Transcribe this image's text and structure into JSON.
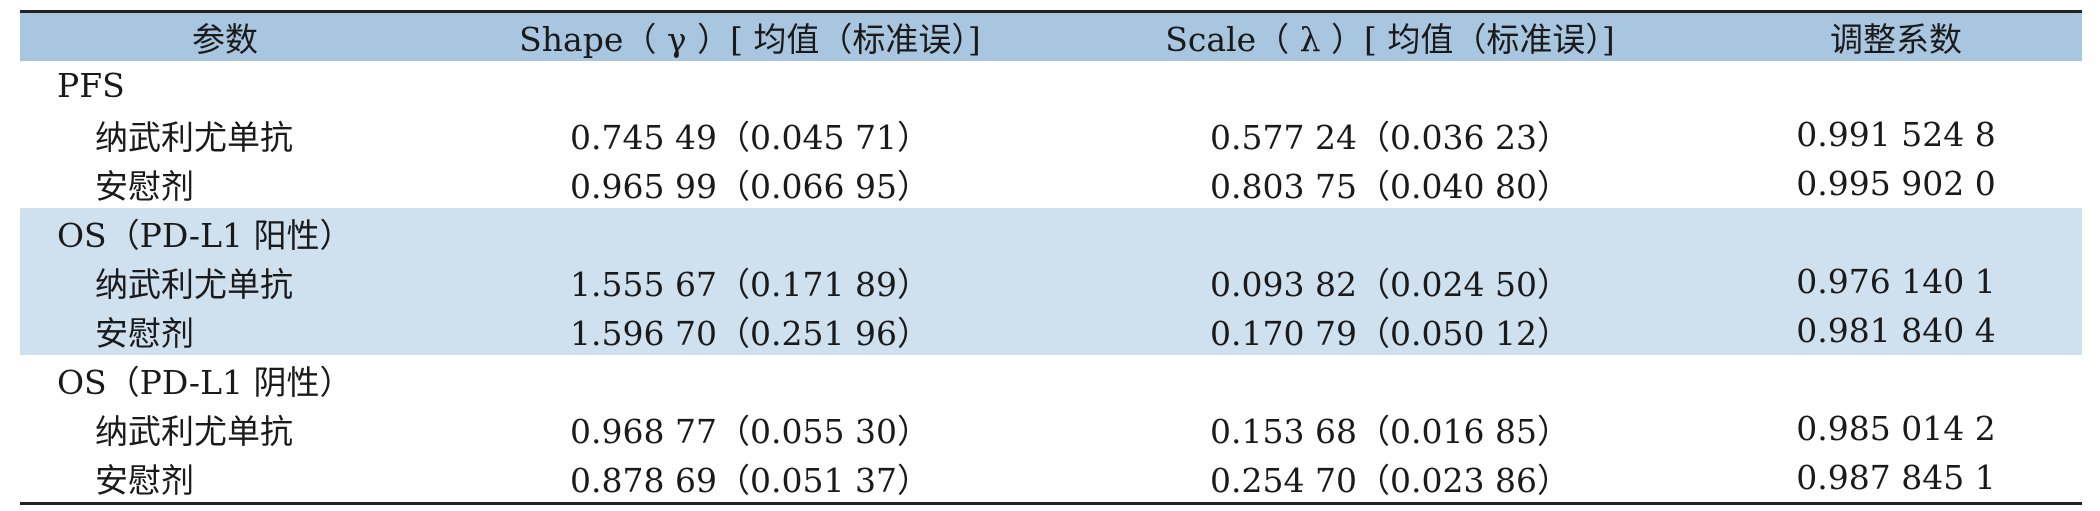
{
  "table": {
    "headers": [
      "参数",
      "Shape（ γ ）[ 均值（标准误）]",
      "Scale（ λ ）[ 均值（标准误）]",
      "调整系数"
    ],
    "groups": [
      {
        "title": "PFS",
        "shaded": false,
        "rows": [
          {
            "label": "纳武利尤单抗",
            "shape": "0.745 49（0.045 71）",
            "scale": "0.577 24（0.036 23）",
            "coef": "0.991 524 8"
          },
          {
            "label": "安慰剂",
            "shape": "0.965 99（0.066 95）",
            "scale": "0.803 75（0.040 80）",
            "coef": "0.995 902 0"
          }
        ]
      },
      {
        "title": "OS（PD-L1 阳性）",
        "shaded": true,
        "rows": [
          {
            "label": "纳武利尤单抗",
            "shape": "1.555 67（0.171 89）",
            "scale": "0.093 82（0.024 50）",
            "coef": "0.976 140 1"
          },
          {
            "label": "安慰剂",
            "shape": "1.596 70（0.251 96）",
            "scale": "0.170 79（0.050 12）",
            "coef": "0.981 840 4"
          }
        ]
      },
      {
        "title": "OS（PD-L1 阴性）",
        "shaded": false,
        "rows": [
          {
            "label": "纳武利尤单抗",
            "shape": "0.968 77（0.055 30）",
            "scale": "0.153 68（0.016 85）",
            "coef": "0.985 014 2"
          },
          {
            "label": "安慰剂",
            "shape": "0.878 69（0.051 37）",
            "scale": "0.254 70（0.023 86）",
            "coef": "0.987 845 1"
          }
        ]
      }
    ]
  }
}
